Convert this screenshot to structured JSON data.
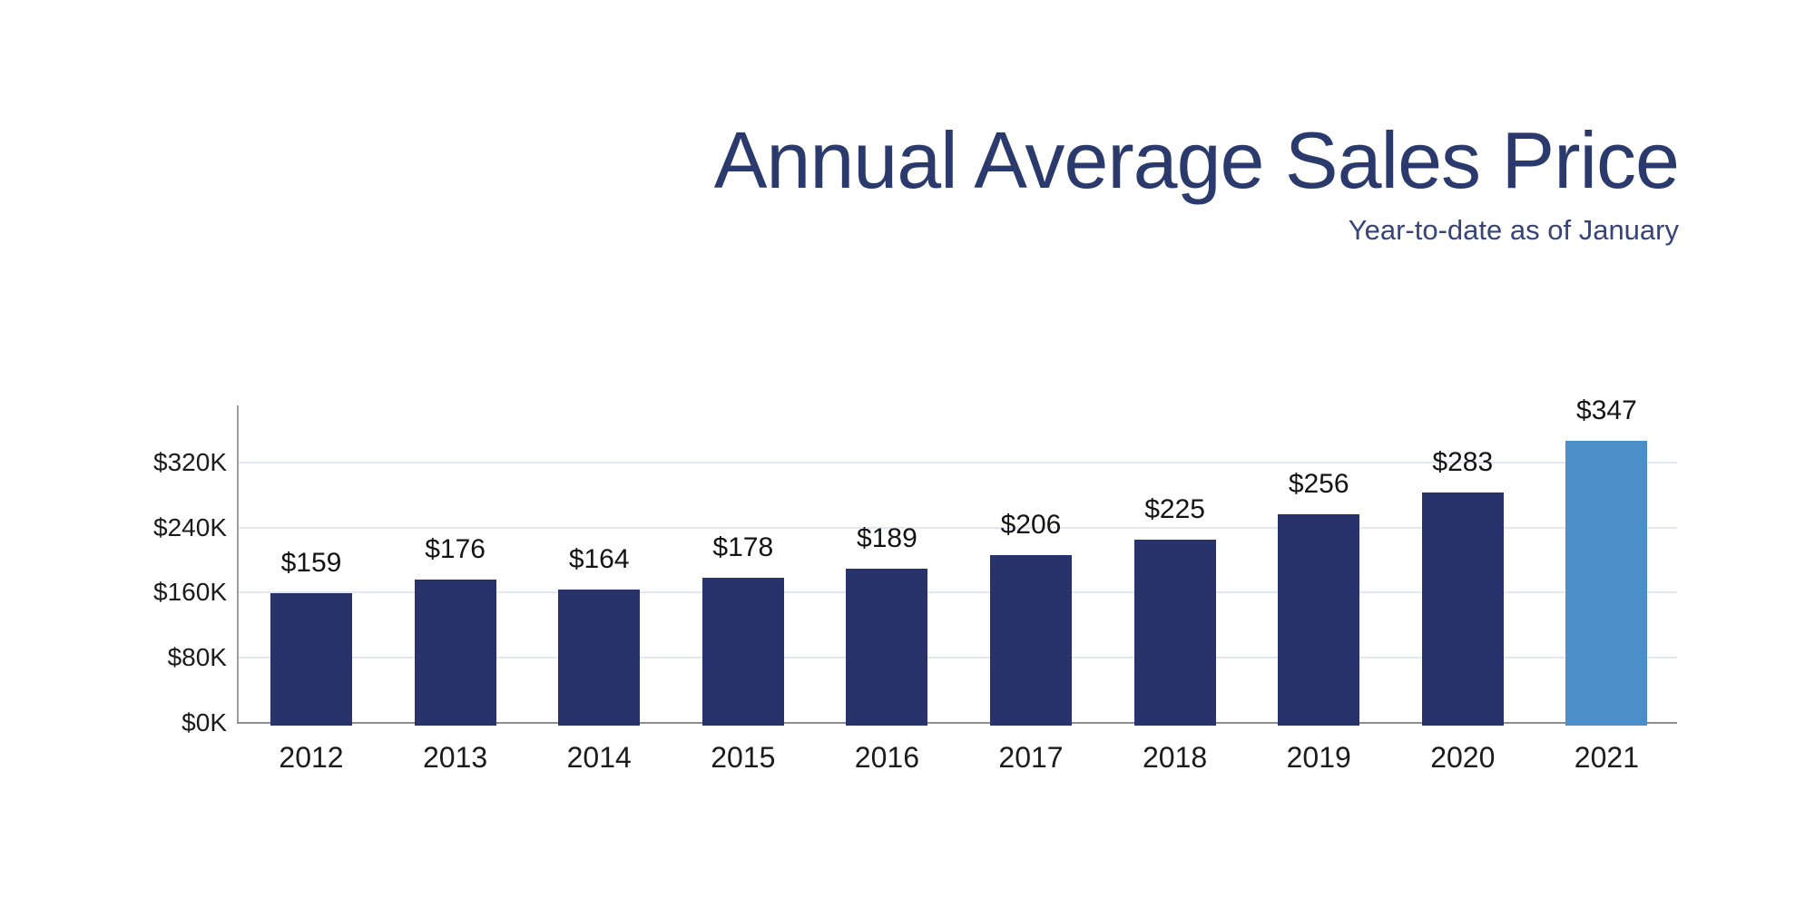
{
  "header": {
    "title": "Annual Average Sales Price",
    "subtitle": "Year-to-date as of January"
  },
  "colors": {
    "title": "#2B3A6C",
    "subtitle": "#364478",
    "bar": "#28326B",
    "highlight_bar": "#4B8ECA",
    "gridline": "#E3E6F3",
    "axis_line": "#9E9E9E",
    "baseline": "#8F8F8F",
    "tick_label": "#1B1B1B",
    "value_label": "#131313"
  },
  "chart_data": {
    "type": "bar",
    "title": "Annual Average Sales Price",
    "subtitle": "Year-to-date as of January",
    "categories": [
      "2012",
      "2013",
      "2014",
      "2015",
      "2016",
      "2017",
      "2018",
      "2019",
      "2020",
      "2021"
    ],
    "values": [
      159,
      176,
      164,
      178,
      189,
      206,
      225,
      256,
      283,
      347
    ],
    "value_labels": [
      "$159",
      "$176",
      "$164",
      "$178",
      "$189",
      "$206",
      "$225",
      "$256",
      "$283",
      "$347"
    ],
    "values_unit": "thousands of USD",
    "xlabel": "",
    "ylabel": "",
    "yticks": [
      0,
      80,
      160,
      240,
      320
    ],
    "ytick_labels": [
      "$0K",
      "$80K",
      "$160K",
      "$240K",
      "$320K"
    ],
    "ylim": [
      0,
      390
    ],
    "grid": true,
    "legend": false,
    "highlight_index": 9
  }
}
